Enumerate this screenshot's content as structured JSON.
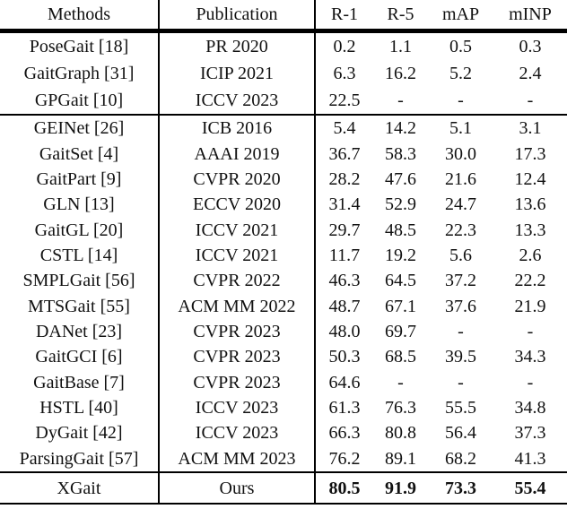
{
  "page": {
    "background_color": "#ffffff",
    "text_color": "#111111",
    "rule_color": "#000000"
  },
  "table": {
    "headers": [
      "Methods",
      "Publication",
      "R-1",
      "R-5",
      "mAP",
      "mINP"
    ],
    "sections": [
      {
        "rows": [
          {
            "method": "PoseGait [18]",
            "publication": "PR 2020",
            "values": [
              "0.2",
              "1.1",
              "0.5",
              "0.3"
            ]
          },
          {
            "method": "GaitGraph [31]",
            "publication": "ICIP 2021",
            "values": [
              "6.3",
              "16.2",
              "5.2",
              "2.4"
            ]
          },
          {
            "method": "GPGait [10]",
            "publication": "ICCV 2023",
            "values": [
              "22.5",
              "-",
              "-",
              "-"
            ]
          }
        ]
      },
      {
        "rows": [
          {
            "method": "GEINet [26]",
            "publication": "ICB 2016",
            "values": [
              "5.4",
              "14.2",
              "5.1",
              "3.1"
            ]
          },
          {
            "method": "GaitSet [4]",
            "publication": "AAAI 2019",
            "values": [
              "36.7",
              "58.3",
              "30.0",
              "17.3"
            ]
          },
          {
            "method": "GaitPart [9]",
            "publication": "CVPR 2020",
            "values": [
              "28.2",
              "47.6",
              "21.6",
              "12.4"
            ]
          },
          {
            "method": "GLN [13]",
            "publication": "ECCV 2020",
            "values": [
              "31.4",
              "52.9",
              "24.7",
              "13.6"
            ]
          },
          {
            "method": "GaitGL [20]",
            "publication": "ICCV 2021",
            "values": [
              "29.7",
              "48.5",
              "22.3",
              "13.3"
            ]
          },
          {
            "method": "CSTL [14]",
            "publication": "ICCV 2021",
            "values": [
              "11.7",
              "19.2",
              "5.6",
              "2.6"
            ]
          },
          {
            "method": "SMPLGait [56]",
            "publication": "CVPR 2022",
            "values": [
              "46.3",
              "64.5",
              "37.2",
              "22.2"
            ]
          },
          {
            "method": "MTSGait [55]",
            "publication": "ACM MM 2022",
            "values": [
              "48.7",
              "67.1",
              "37.6",
              "21.9"
            ]
          },
          {
            "method": "DANet [23]",
            "publication": "CVPR 2023",
            "values": [
              "48.0",
              "69.7",
              "-",
              "-"
            ]
          },
          {
            "method": "GaitGCI [6]",
            "publication": "CVPR 2023",
            "values": [
              "50.3",
              "68.5",
              "39.5",
              "34.3"
            ]
          },
          {
            "method": "GaitBase [7]",
            "publication": "CVPR 2023",
            "values": [
              "64.6",
              "-",
              "-",
              "-"
            ]
          },
          {
            "method": "HSTL [40]",
            "publication": "ICCV 2023",
            "values": [
              "61.3",
              "76.3",
              "55.5",
              "34.8"
            ]
          },
          {
            "method": "DyGait [42]",
            "publication": "ICCV 2023",
            "values": [
              "66.3",
              "80.8",
              "56.4",
              "37.3"
            ]
          },
          {
            "method": "ParsingGait [57]",
            "publication": "ACM MM 2023",
            "values": [
              "76.2",
              "89.1",
              "68.2",
              "41.3"
            ]
          }
        ]
      }
    ],
    "final_row": {
      "method": "XGait",
      "publication": "Ours",
      "values": [
        "80.5",
        "91.9",
        "73.3",
        "55.4"
      ],
      "values_bold": true
    }
  }
}
